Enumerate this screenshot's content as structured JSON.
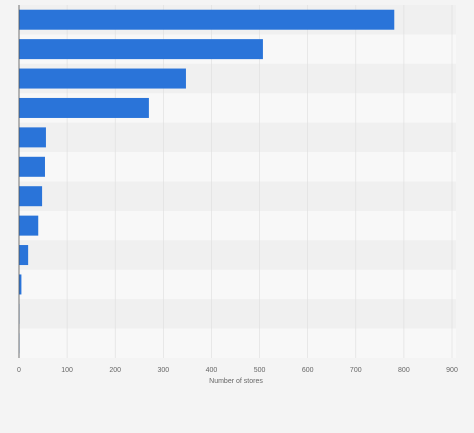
{
  "chart_data": {
    "type": "bar",
    "orientation": "horizontal",
    "categories": [
      null,
      null,
      null,
      null,
      null,
      null,
      null,
      null,
      null,
      null,
      null,
      null
    ],
    "values": [
      780,
      507,
      347,
      270,
      56,
      54,
      48,
      40,
      19,
      5,
      1,
      1
    ],
    "color": "#2a74d9",
    "xlabel": "Number of stores",
    "xlim": [
      0,
      900
    ],
    "xticks": [
      0,
      100,
      200,
      300,
      400,
      500,
      600,
      700,
      800,
      900
    ],
    "grid": true
  }
}
